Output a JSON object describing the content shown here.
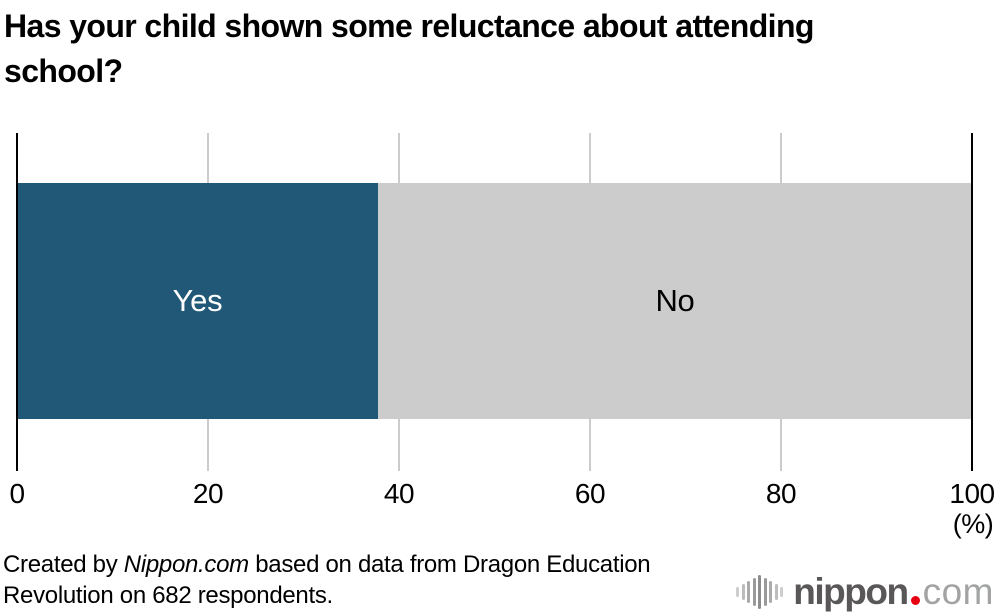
{
  "title": "Has your child shown some reluctance about attending school?",
  "chart_data": {
    "type": "bar",
    "orientation": "horizontal-stacked",
    "title": "Has your child shown some reluctance about attending school?",
    "categories": [
      "Yes",
      "No"
    ],
    "values": [
      37.8,
      62.2
    ],
    "colors": [
      "#215877",
      "#cccccc"
    ],
    "label_colors": [
      "#ffffff",
      "#000000"
    ],
    "xlim": [
      0,
      100
    ],
    "ticks": [
      0,
      20,
      40,
      60,
      80,
      100
    ],
    "unit_label": "(%)",
    "xlabel": "",
    "ylabel": "",
    "grid": "vertical",
    "legend": "none"
  },
  "footer": {
    "credit_prefix": "Created by ",
    "credit_source": "Nippon.com",
    "credit_suffix": " based on data from Dragon Education Revolution on 682 respondents."
  },
  "logo": {
    "name": "nippon",
    "tld": "com",
    "brand_red": "#e60012",
    "dark_gray": "#595757",
    "light_gray": "#a2a3a3"
  }
}
